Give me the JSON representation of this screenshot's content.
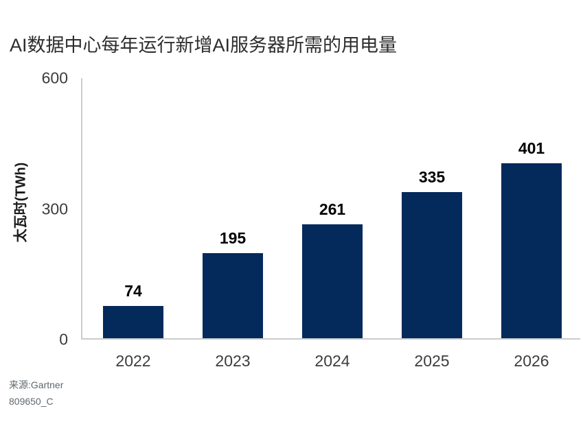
{
  "chart_data": {
    "type": "bar",
    "title": "AI数据中心每年运行新增AI服务器所需的用电量",
    "ylabel": "太瓦时(TWh)",
    "xlabel": "",
    "categories": [
      "2022",
      "2023",
      "2024",
      "2025",
      "2026"
    ],
    "values": [
      74,
      195,
      261,
      335,
      401
    ],
    "ylim": [
      0,
      600
    ],
    "yticks": [
      0,
      300,
      600
    ],
    "grid": false,
    "legend_position": "none",
    "value_labels": true,
    "colors": {
      "bar": "#04295b",
      "axis": "#c9cbcc"
    }
  },
  "source": {
    "line1": "来源:Gartner",
    "line2": "809650_C"
  }
}
